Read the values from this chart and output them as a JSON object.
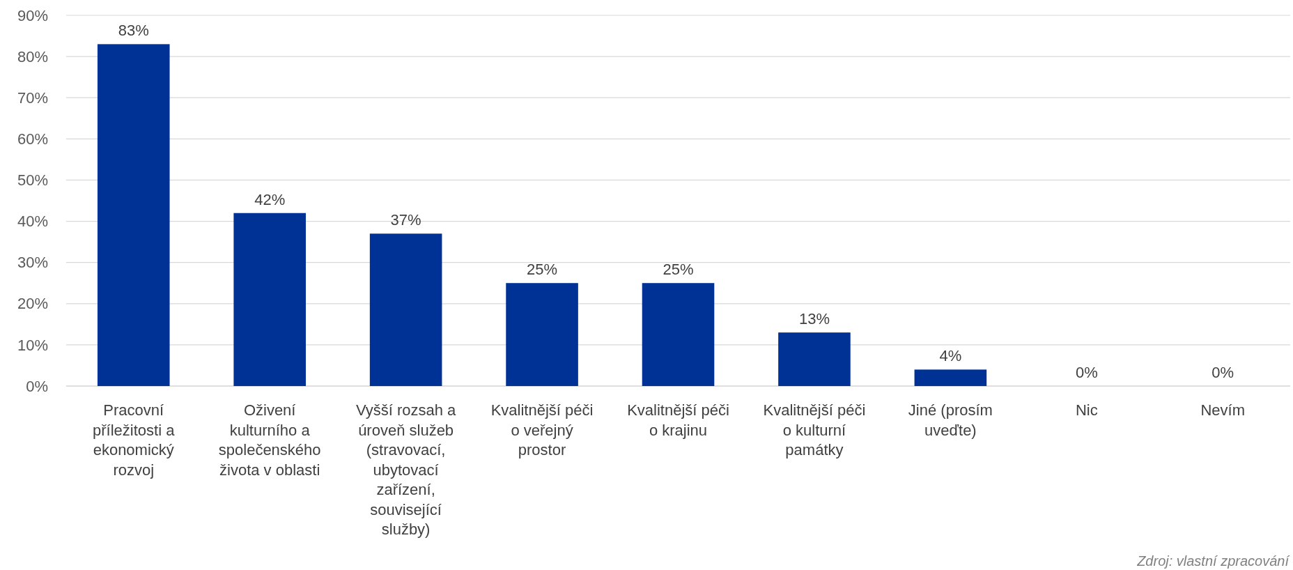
{
  "chart_data": {
    "type": "bar",
    "categories": [
      "Pracovní příležitosti a ekonomický rozvoj",
      "Oživení kulturního a společenského života v oblasti",
      "Vyšší rozsah a úroveň služeb (stravovací, ubytovací zařízení, související služby)",
      "Kvalitnější péči o veřejný prostor",
      "Kvalitnější péči o krajinu",
      "Kvalitnější péči o kulturní památky",
      "Jiné (prosím uveďte)",
      "Nic",
      "Nevím"
    ],
    "values": [
      83,
      42,
      37,
      25,
      25,
      13,
      4,
      0,
      0
    ],
    "value_labels": [
      "83%",
      "42%",
      "37%",
      "25%",
      "25%",
      "13%",
      "4%",
      "0%",
      "0%"
    ],
    "color": "#003296",
    "ylim": [
      0,
      90
    ],
    "yticks": [
      {
        "value": 0,
        "label": "0%"
      },
      {
        "value": 10,
        "label": "10%"
      },
      {
        "value": 20,
        "label": "20%"
      },
      {
        "value": 30,
        "label": "30%"
      },
      {
        "value": 40,
        "label": "40%"
      },
      {
        "value": 50,
        "label": "50%"
      },
      {
        "value": 60,
        "label": "60%"
      },
      {
        "value": 70,
        "label": "70%"
      },
      {
        "value": 80,
        "label": "80%"
      },
      {
        "value": 90,
        "label": "90%"
      }
    ],
    "grid": "y",
    "annotations": [
      "Zdroj: vlastní zpracování"
    ]
  }
}
